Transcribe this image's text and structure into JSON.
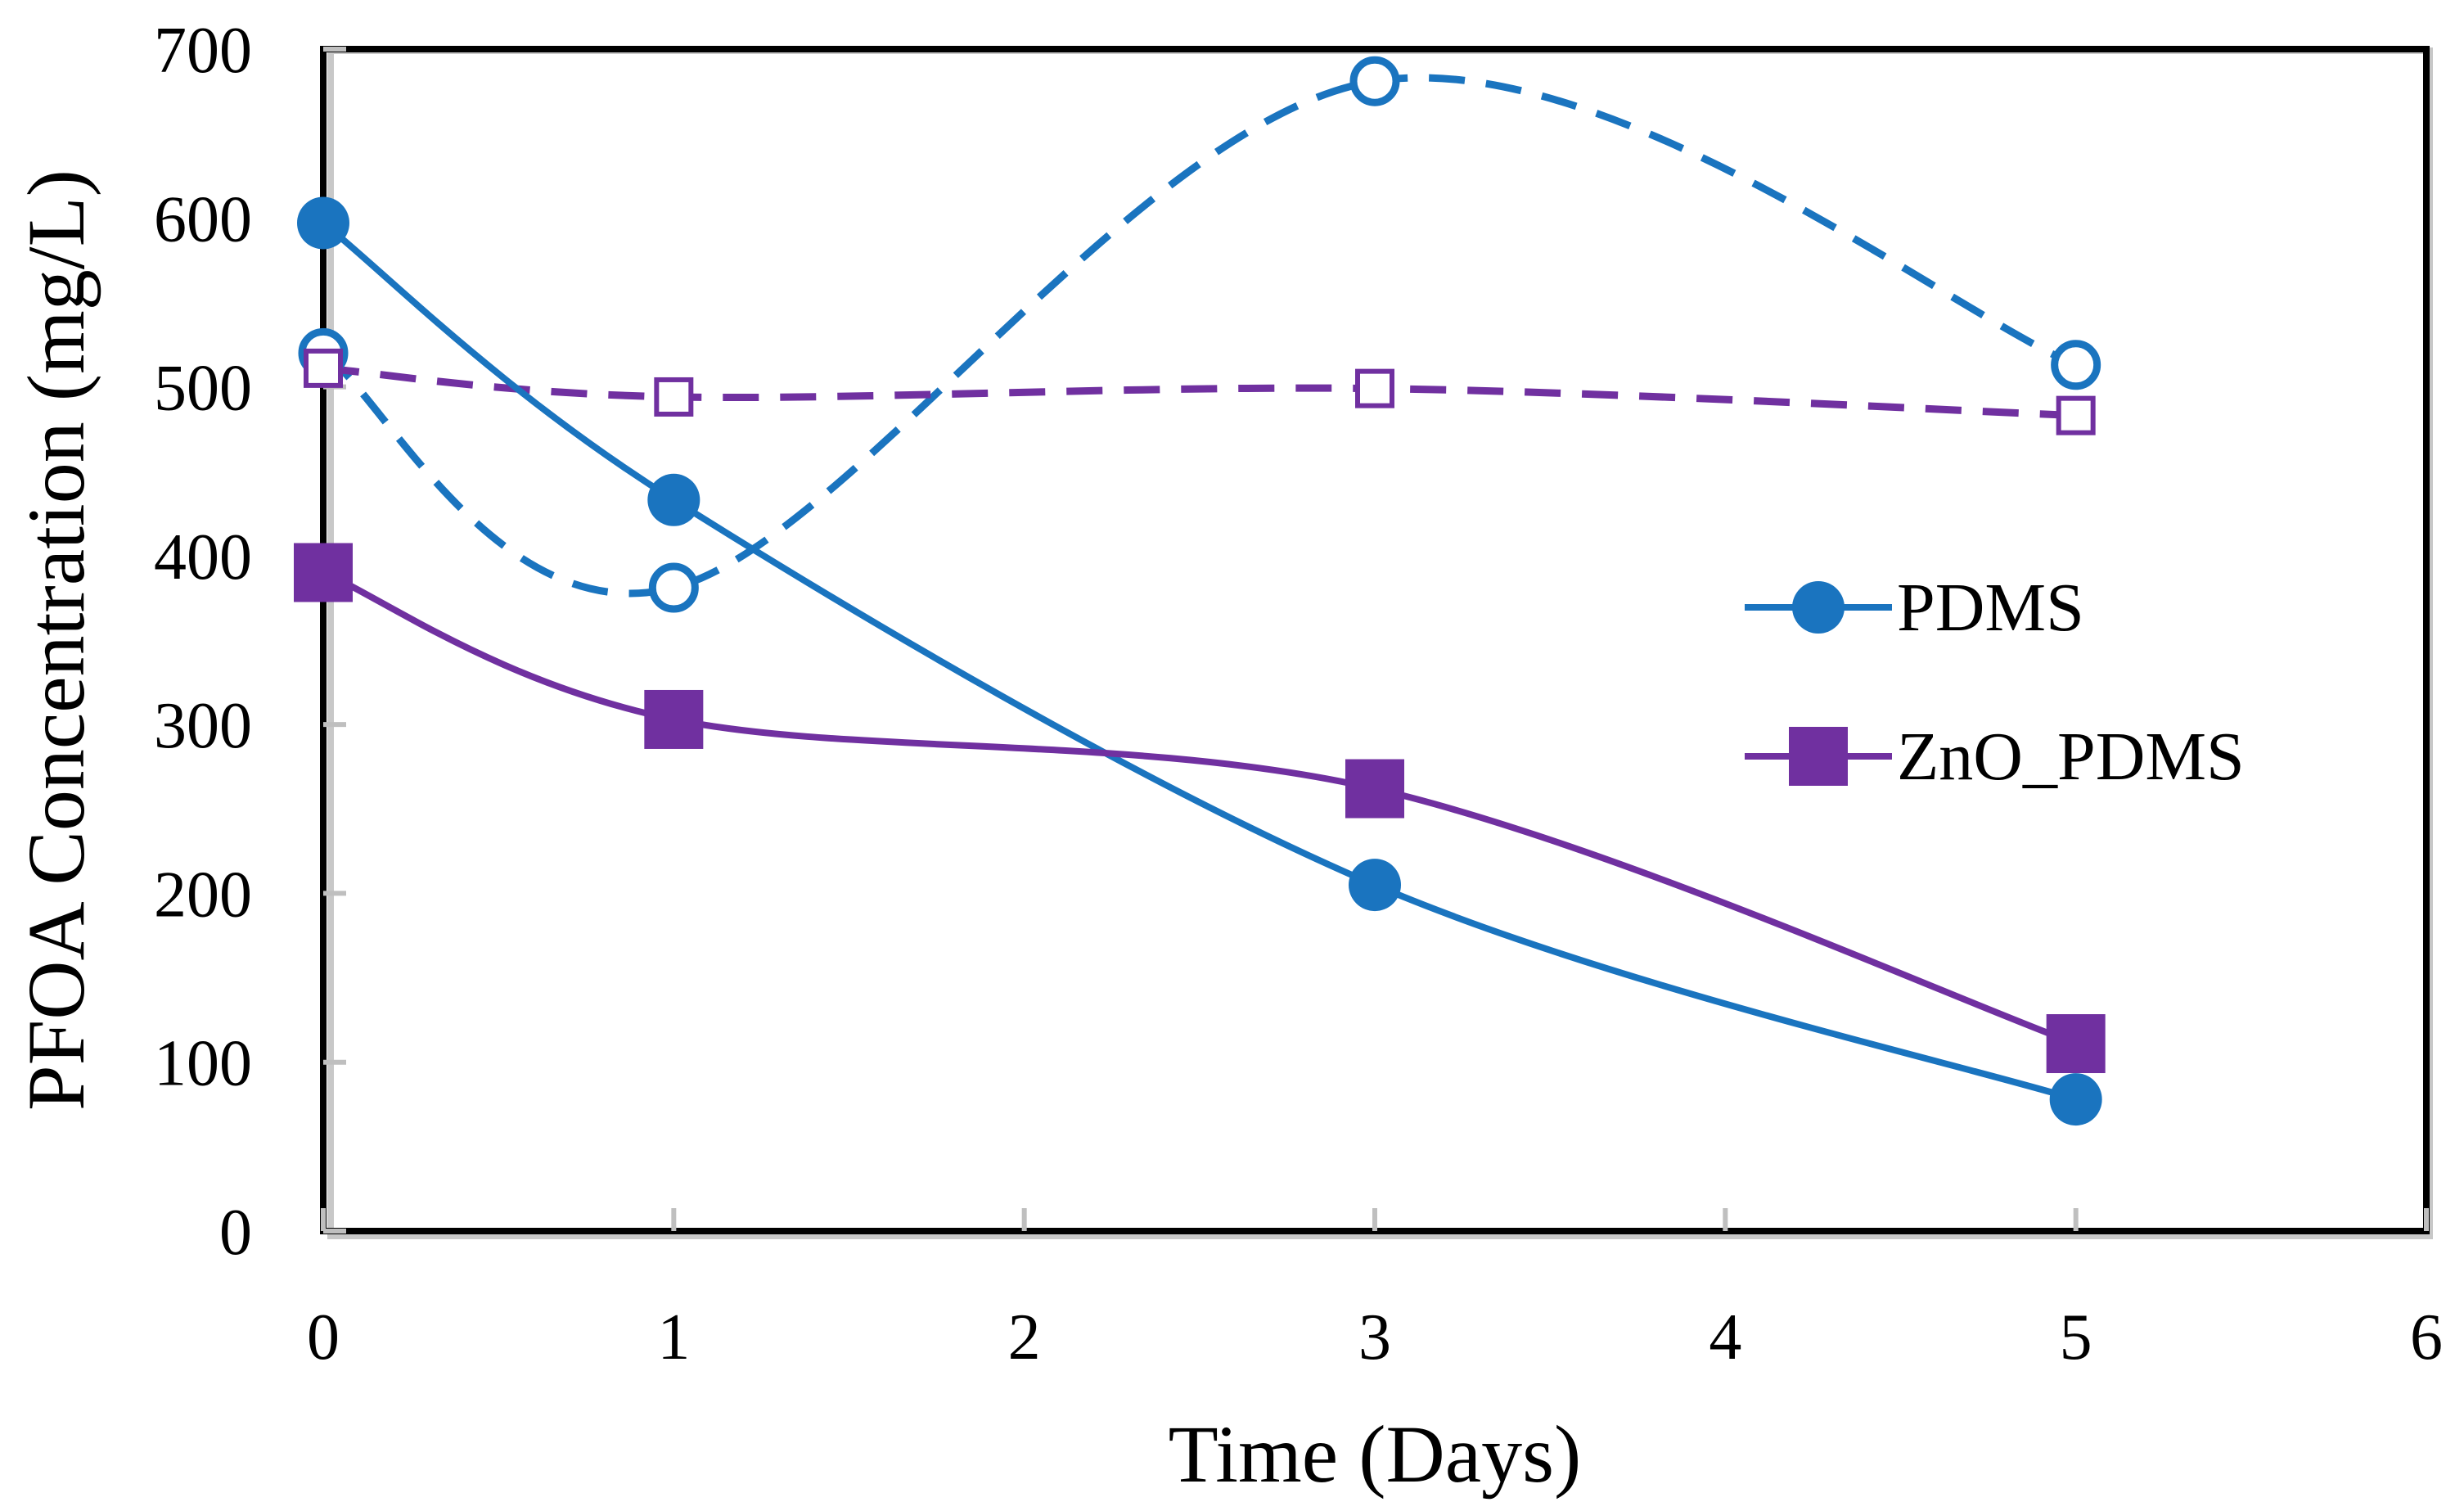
{
  "chart_data": {
    "type": "line",
    "title": "",
    "xlabel": "Time (Days)",
    "ylabel": "PFOA Concentration (mg/L)",
    "xlim": [
      0,
      6
    ],
    "ylim": [
      0,
      700
    ],
    "xticks": [
      0,
      1,
      2,
      3,
      4,
      5,
      6
    ],
    "yticks": [
      0,
      100,
      200,
      300,
      400,
      500,
      600,
      700
    ],
    "grid": false,
    "legend_position": "right",
    "series": [
      {
        "name": "PDMS",
        "x": [
          0,
          1,
          3,
          5
        ],
        "y": [
          597,
          433,
          205,
          78
        ],
        "color": "#1a74bf",
        "marker": "circle",
        "filled": true,
        "line": "solid",
        "in_legend": true
      },
      {
        "name": "ZnO_PDMS",
        "x": [
          0,
          1,
          3,
          5
        ],
        "y": [
          390,
          303,
          262,
          111
        ],
        "color": "#7030a0",
        "marker": "square",
        "filled": true,
        "line": "solid",
        "in_legend": true
      },
      {
        "name": "",
        "x": [
          0,
          1,
          3,
          5
        ],
        "y": [
          520,
          381,
          681,
          513
        ],
        "color": "#1a74bf",
        "marker": "circle",
        "filled": false,
        "line": "dashed",
        "in_legend": false
      },
      {
        "name": "",
        "x": [
          0,
          1,
          3,
          5
        ],
        "y": [
          511,
          494,
          499,
          483
        ],
        "color": "#7030a0",
        "marker": "square",
        "filled": false,
        "line": "dashed",
        "in_legend": false
      }
    ]
  }
}
